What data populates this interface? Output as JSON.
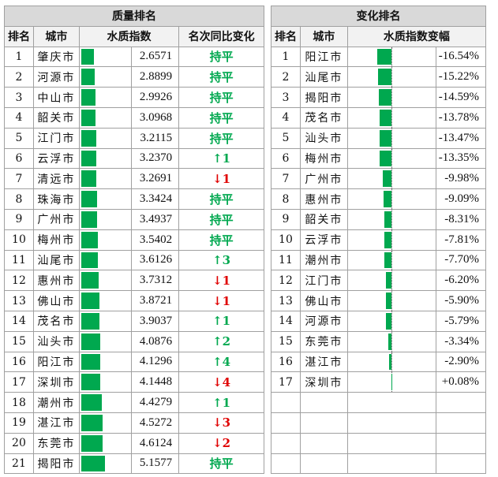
{
  "quality": {
    "title": "质量排名",
    "headers": [
      "排名",
      "城市",
      "水质指数",
      "名次同比变化"
    ],
    "rows": [
      {
        "rank": "1",
        "city": "肇庆市",
        "index": "2.6571",
        "change": "持平",
        "dir": "flat"
      },
      {
        "rank": "2",
        "city": "河源市",
        "index": "2.8899",
        "change": "持平",
        "dir": "flat"
      },
      {
        "rank": "3",
        "city": "中山市",
        "index": "2.9926",
        "change": "持平",
        "dir": "flat"
      },
      {
        "rank": "4",
        "city": "韶关市",
        "index": "3.0968",
        "change": "持平",
        "dir": "flat"
      },
      {
        "rank": "5",
        "city": "江门市",
        "index": "3.2115",
        "change": "持平",
        "dir": "flat"
      },
      {
        "rank": "6",
        "city": "云浮市",
        "index": "3.2370",
        "change": "↑1",
        "dir": "up"
      },
      {
        "rank": "7",
        "city": "清远市",
        "index": "3.2691",
        "change": "↓1",
        "dir": "down"
      },
      {
        "rank": "8",
        "city": "珠海市",
        "index": "3.3424",
        "change": "持平",
        "dir": "flat"
      },
      {
        "rank": "9",
        "city": "广州市",
        "index": "3.4937",
        "change": "持平",
        "dir": "flat"
      },
      {
        "rank": "10",
        "city": "梅州市",
        "index": "3.5402",
        "change": "持平",
        "dir": "flat"
      },
      {
        "rank": "11",
        "city": "汕尾市",
        "index": "3.6126",
        "change": "↑3",
        "dir": "up"
      },
      {
        "rank": "12",
        "city": "惠州市",
        "index": "3.7312",
        "change": "↓1",
        "dir": "down"
      },
      {
        "rank": "13",
        "city": "佛山市",
        "index": "3.8721",
        "change": "↓1",
        "dir": "down"
      },
      {
        "rank": "14",
        "city": "茂名市",
        "index": "3.9037",
        "change": "↑1",
        "dir": "up"
      },
      {
        "rank": "15",
        "city": "汕头市",
        "index": "4.0876",
        "change": "↑2",
        "dir": "up"
      },
      {
        "rank": "16",
        "city": "阳江市",
        "index": "4.1296",
        "change": "↑4",
        "dir": "up"
      },
      {
        "rank": "17",
        "city": "深圳市",
        "index": "4.1448",
        "change": "↓4",
        "dir": "down"
      },
      {
        "rank": "18",
        "city": "潮州市",
        "index": "4.4279",
        "change": "↑1",
        "dir": "up"
      },
      {
        "rank": "19",
        "city": "湛江市",
        "index": "4.5272",
        "change": "↓3",
        "dir": "down"
      },
      {
        "rank": "20",
        "city": "东莞市",
        "index": "4.6124",
        "change": "↓2",
        "dir": "down"
      },
      {
        "rank": "21",
        "city": "揭阳市",
        "index": "5.1577",
        "change": "持平",
        "dir": "flat"
      }
    ]
  },
  "change": {
    "title": "变化排名",
    "headers": [
      "排名",
      "城市",
      "水质指数变幅"
    ],
    "rows": [
      {
        "rank": "1",
        "city": "阳江市",
        "pct": "-16.54%"
      },
      {
        "rank": "2",
        "city": "汕尾市",
        "pct": "-15.22%"
      },
      {
        "rank": "3",
        "city": "揭阳市",
        "pct": "-14.59%"
      },
      {
        "rank": "4",
        "city": "茂名市",
        "pct": "-13.78%"
      },
      {
        "rank": "5",
        "city": "汕头市",
        "pct": "-13.47%"
      },
      {
        "rank": "6",
        "city": "梅州市",
        "pct": "-13.35%"
      },
      {
        "rank": "7",
        "city": "广州市",
        "pct": "-9.98%"
      },
      {
        "rank": "8",
        "city": "惠州市",
        "pct": "-9.09%"
      },
      {
        "rank": "9",
        "city": "韶关市",
        "pct": "-8.31%"
      },
      {
        "rank": "10",
        "city": "云浮市",
        "pct": "-7.81%"
      },
      {
        "rank": "11",
        "city": "潮州市",
        "pct": "-7.70%"
      },
      {
        "rank": "12",
        "city": "江门市",
        "pct": "-6.20%"
      },
      {
        "rank": "13",
        "city": "佛山市",
        "pct": "-5.90%"
      },
      {
        "rank": "14",
        "city": "河源市",
        "pct": "-5.79%"
      },
      {
        "rank": "15",
        "city": "东莞市",
        "pct": "-3.34%"
      },
      {
        "rank": "16",
        "city": "湛江市",
        "pct": "-2.90%"
      },
      {
        "rank": "17",
        "city": "深圳市",
        "pct": "+0.08%"
      }
    ]
  },
  "colors": {
    "bar": "#00a84f",
    "up": "#00a84f",
    "down": "#e00000",
    "flat": "#00a84f"
  }
}
